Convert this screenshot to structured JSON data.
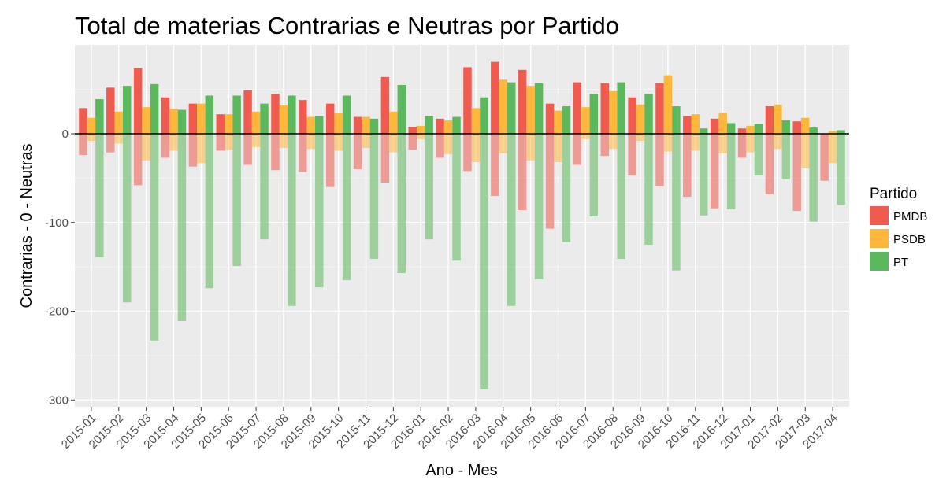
{
  "chart_data": {
    "type": "bar",
    "title": "Total de materias Contrarias e Neutras por Partido",
    "xlabel": "Ano - Mes",
    "ylabel": "Contrarias - 0 - Neutras",
    "ylim": [
      -305,
      98
    ],
    "yticks": [
      0,
      -100,
      -200,
      -300
    ],
    "ytick_labels": [
      "0",
      "-100",
      "-200",
      "-300"
    ],
    "grid": true,
    "legend": {
      "title": "Partido",
      "position": "right"
    },
    "categories": [
      "2015-01",
      "2015-02",
      "2015-03",
      "2015-04",
      "2015-05",
      "2015-06",
      "2015-07",
      "2015-08",
      "2015-09",
      "2015-10",
      "2015-11",
      "2015-12",
      "2016-01",
      "2016-02",
      "2016-03",
      "2016-04",
      "2016-05",
      "2016-06",
      "2016-07",
      "2016-08",
      "2016-09",
      "2016-10",
      "2016-11",
      "2016-12",
      "2017-01",
      "2017-02",
      "2017-03",
      "2017-04"
    ],
    "series": [
      {
        "name": "PMDB",
        "color": "#ef5b4e",
        "neutras": [
          29,
          52,
          74,
          41,
          34,
          22,
          49,
          45,
          38,
          34,
          19,
          64,
          8,
          17,
          75,
          81,
          72,
          34,
          58,
          57,
          41,
          57,
          20,
          17,
          6,
          31,
          14,
          0
        ],
        "contrarias": [
          -24,
          -21,
          -58,
          -27,
          -37,
          -19,
          -35,
          -41,
          -43,
          -60,
          -40,
          -55,
          -18,
          -27,
          -42,
          -70,
          -86,
          -107,
          -35,
          -25,
          -47,
          -59,
          -71,
          -84,
          -27,
          -68,
          -87,
          -53
        ]
      },
      {
        "name": "PSDB",
        "color": "#fdb83c",
        "neutras": [
          18,
          25,
          30,
          28,
          34,
          22,
          25,
          32,
          19,
          23,
          19,
          25,
          9,
          15,
          29,
          61,
          54,
          26,
          30,
          48,
          33,
          66,
          22,
          24,
          9,
          33,
          18,
          3
        ],
        "contrarias": [
          -8,
          -11,
          -30,
          -19,
          -33,
          -18,
          -15,
          -16,
          -17,
          -19,
          -16,
          -21,
          -6,
          -23,
          -32,
          -22,
          -30,
          -32,
          -6,
          -17,
          -8,
          -20,
          -19,
          -22,
          -21,
          -17,
          -39,
          -33
        ]
      },
      {
        "name": "PT",
        "color": "#5cb85c",
        "neutras": [
          39,
          54,
          56,
          27,
          43,
          43,
          34,
          43,
          20,
          43,
          17,
          55,
          20,
          19,
          41,
          58,
          57,
          31,
          45,
          58,
          45,
          31,
          6,
          12,
          11,
          15,
          7,
          4
        ],
        "contrarias": [
          -139,
          -190,
          -233,
          -211,
          -174,
          -149,
          -119,
          -194,
          -173,
          -165,
          -141,
          -157,
          -119,
          -143,
          -288,
          -194,
          -164,
          -122,
          -93,
          -141,
          -125,
          -154,
          -92,
          -85,
          -47,
          -51,
          -99,
          -80
        ]
      }
    ]
  }
}
